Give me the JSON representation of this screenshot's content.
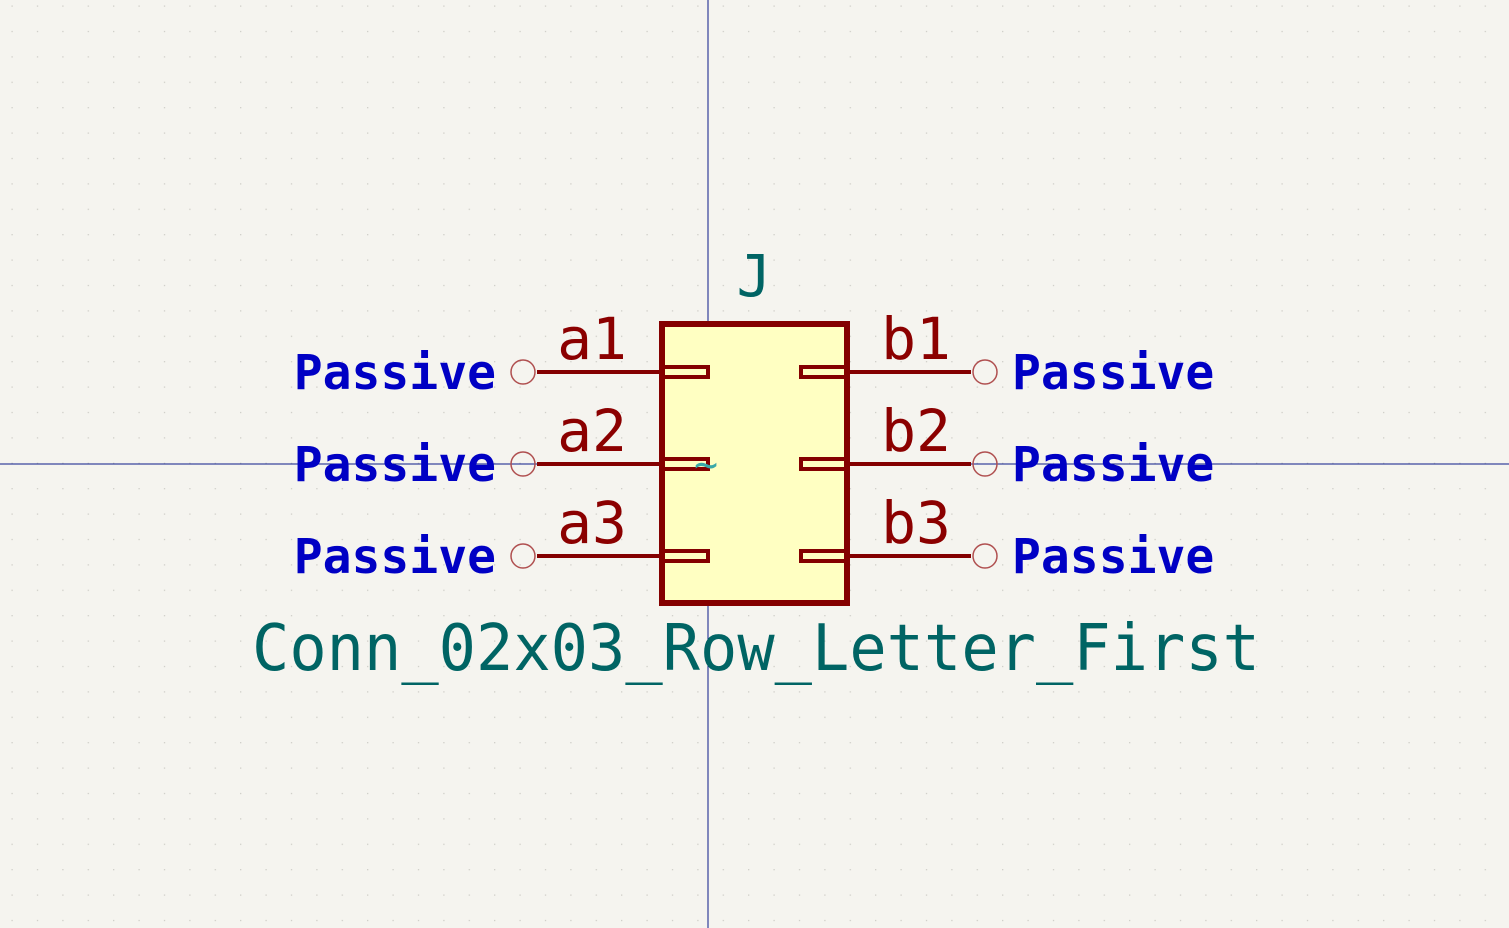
{
  "colors": {
    "background": "#f5f4ef",
    "grid_dot": "#c9c8c2",
    "axis": "#0a1a8a",
    "body_outline": "#840000",
    "body_fill": "#ffffc2",
    "pin": "#840000",
    "pin_name": "#8b0000",
    "pin_type": "#0000c4",
    "field_text": "#006464",
    "pin_end_circle": "#b05050"
  },
  "symbol": {
    "reference": "J",
    "value": "Conn_02x03_Row_Letter_First",
    "anchor_glyph": "~",
    "left_pins": [
      {
        "name": "a1",
        "type": "Passive"
      },
      {
        "name": "a2",
        "type": "Passive"
      },
      {
        "name": "a3",
        "type": "Passive"
      }
    ],
    "right_pins": [
      {
        "name": "b1",
        "type": "Passive"
      },
      {
        "name": "b2",
        "type": "Passive"
      },
      {
        "name": "b3",
        "type": "Passive"
      }
    ]
  }
}
